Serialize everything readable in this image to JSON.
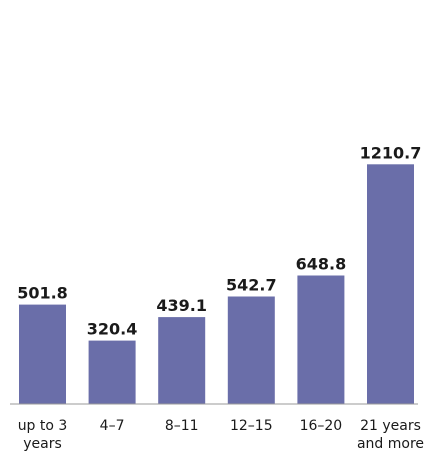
{
  "chart_data": {
    "type": "bar",
    "categories": [
      [
        "up to 3",
        "years"
      ],
      [
        "4–7"
      ],
      [
        "8–11"
      ],
      [
        "12–15"
      ],
      [
        "16–20"
      ],
      [
        "21 years",
        "and more"
      ]
    ],
    "values": [
      501.8,
      320.4,
      439.1,
      542.7,
      648.8,
      1210.7
    ],
    "value_labels": [
      "501.8",
      "320.4",
      "439.1",
      "542.7",
      "648.8",
      "1210.7"
    ],
    "ylim": [
      0,
      1400
    ],
    "grid": false,
    "legend": false,
    "bar_color": "#6a6ea9",
    "axis_color": "#9a9a9a"
  }
}
